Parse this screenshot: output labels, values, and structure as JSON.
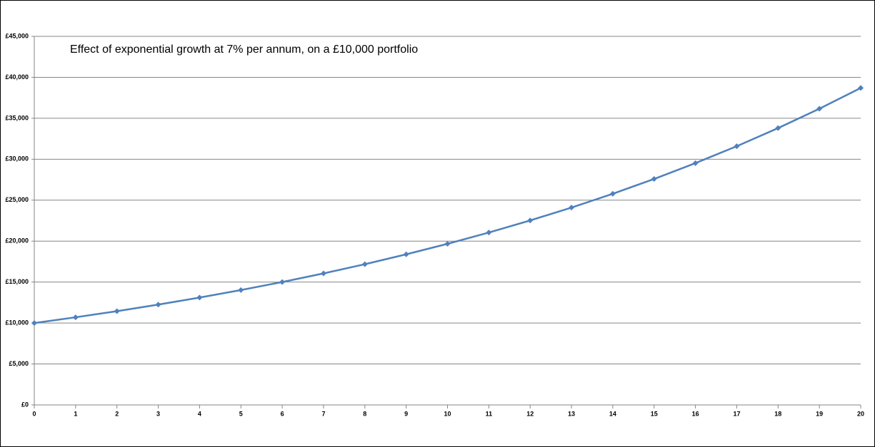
{
  "chart_data": {
    "type": "line",
    "title": "Effect of exponential growth at 7% per annum, on a £10,000 portfolio",
    "x": [
      0,
      1,
      2,
      3,
      4,
      5,
      6,
      7,
      8,
      9,
      10,
      11,
      12,
      13,
      14,
      15,
      16,
      17,
      18,
      19,
      20
    ],
    "values": [
      10000,
      10700,
      11449,
      12250,
      13108,
      14026,
      15007,
      16058,
      17182,
      18385,
      19672,
      21049,
      22522,
      24098,
      25785,
      27590,
      29522,
      31588,
      33799,
      36165,
      38697
    ],
    "color": "#4f81bd",
    "xlim": [
      0,
      20
    ],
    "xticks": [
      0,
      1,
      2,
      3,
      4,
      5,
      6,
      7,
      8,
      9,
      10,
      11,
      12,
      13,
      14,
      15,
      16,
      17,
      18,
      19,
      20
    ],
    "ylim": [
      0,
      45000
    ],
    "yticks": [
      {
        "value": 0,
        "label": "£0"
      },
      {
        "value": 5000,
        "label": "£5,000"
      },
      {
        "value": 10000,
        "label": "£10,000"
      },
      {
        "value": 15000,
        "label": "£15,000"
      },
      {
        "value": 20000,
        "label": "£20,000"
      },
      {
        "value": 25000,
        "label": "£25,000"
      },
      {
        "value": 30000,
        "label": "£30,000"
      },
      {
        "value": 35000,
        "label": "£35,000"
      },
      {
        "value": 40000,
        "label": "£40,000"
      },
      {
        "value": 45000,
        "label": "£45,000"
      }
    ],
    "grid": true
  }
}
